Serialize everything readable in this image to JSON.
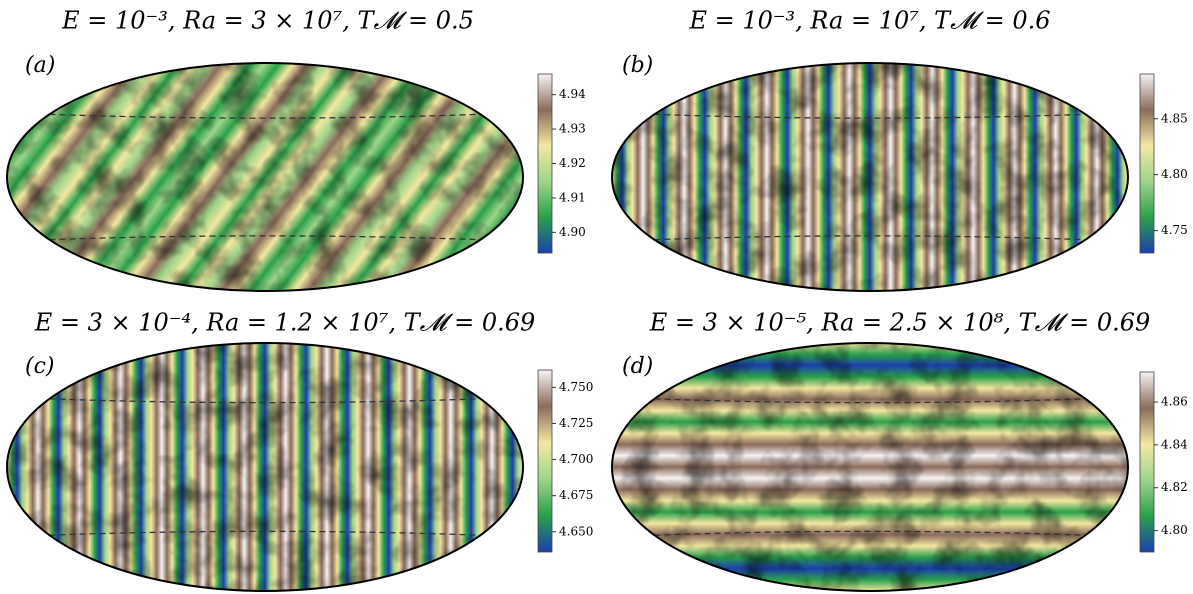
{
  "chart_data": [
    {
      "type": "map",
      "title": "E = 10⁻³,  Ra = 3 × 10⁷,  T𝓜 = 0.5",
      "label": "(a)",
      "pattern": "mixed",
      "colormap": [
        "#1c3fb0",
        "#2aa04a",
        "#9fd58a",
        "#f3e7a1",
        "#8b6c5c",
        "#f6f2f2"
      ],
      "ylim": [
        4.894,
        4.946
      ],
      "yticks": [
        {
          "value": 4.9,
          "label": "4.90"
        },
        4.91,
        4.92,
        4.93,
        4.94
      ]
    },
    {
      "type": "map",
      "title": "E = 10⁻³,  Ra = 10⁷,  T𝓜 = 0.6",
      "label": "(b)",
      "pattern": "vertical",
      "colormap": [
        "#1c3fb0",
        "#2aa04a",
        "#9fd58a",
        "#f3e7a1",
        "#8b6c5c",
        "#f6f2f2"
      ],
      "ylim": [
        4.73,
        4.89
      ],
      "yticks": [
        4.75,
        {
          "value": 4.8,
          "label": "4.80"
        },
        4.85
      ]
    },
    {
      "type": "map",
      "title": "E = 3 × 10⁻⁴,  Ra = 1.2 × 10⁷,  T𝓜 = 0.69",
      "label": "(c)",
      "pattern": "vertical",
      "colormap": [
        "#1c3fb0",
        "#2aa04a",
        "#9fd58a",
        "#f3e7a1",
        "#8b6c5c",
        "#f6f2f2"
      ],
      "ylim": [
        4.636,
        4.762
      ],
      "yticks": [
        {
          "value": 4.65,
          "label": "4.650"
        },
        4.675,
        {
          "value": 4.7,
          "label": "4.700"
        },
        4.725,
        {
          "value": 4.75,
          "label": "4.750"
        }
      ]
    },
    {
      "type": "map",
      "title": "E = 3 × 10⁻⁵,  Ra = 2.5 × 10⁸,  T𝓜 = 0.69",
      "label": "(d)",
      "pattern": "horizontal",
      "colormap": [
        "#1c3fb0",
        "#2aa04a",
        "#9fd58a",
        "#f3e7a1",
        "#8b6c5c",
        "#f6f2f2"
      ],
      "ylim": [
        4.79,
        4.874
      ],
      "yticks": [
        {
          "value": 4.8,
          "label": "4.80"
        },
        4.82,
        4.84,
        4.86
      ]
    }
  ]
}
